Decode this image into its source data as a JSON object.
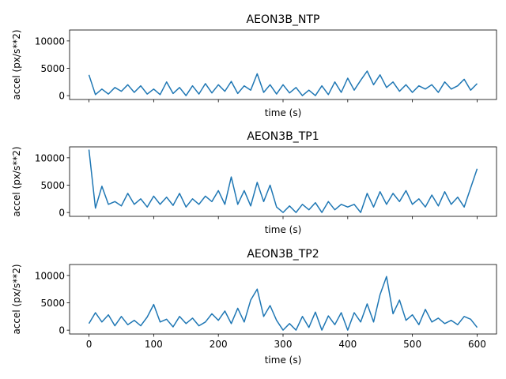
{
  "chart_data": [
    {
      "type": "line",
      "title": "AEON3B_NTP",
      "xlabel": "time (s)",
      "ylabel": "accel (px/s**2)",
      "xlim": [
        -30,
        630
      ],
      "ylim": [
        -700,
        12000
      ],
      "xticks": [
        0,
        100,
        200,
        300,
        400,
        500,
        600
      ],
      "yticks": [
        0,
        5000,
        10000
      ],
      "show_xticklabels": false,
      "grid": false,
      "color": "#1f77b4",
      "x_start": 0,
      "x_end": 600,
      "values": [
        3800,
        200,
        1200,
        300,
        1500,
        800,
        2000,
        600,
        1800,
        300,
        1200,
        200,
        2500,
        400,
        1500,
        0,
        1800,
        300,
        2200,
        500,
        2000,
        800,
        2600,
        400,
        1800,
        1000,
        4000,
        600,
        2000,
        300,
        2000,
        500,
        1500,
        0,
        1000,
        0,
        1800,
        200,
        2500,
        600,
        3200,
        1000,
        2800,
        4500,
        2000,
        3800,
        1500,
        2500,
        800,
        2000,
        600,
        1800,
        1200,
        2000,
        600,
        2500,
        1200,
        1800,
        3000,
        1000,
        2200
      ]
    },
    {
      "type": "line",
      "title": "AEON3B_TP1",
      "xlabel": "time (s)",
      "ylabel": "accel (px/s**2)",
      "xlim": [
        -30,
        630
      ],
      "ylim": [
        -700,
        12000
      ],
      "xticks": [
        0,
        100,
        200,
        300,
        400,
        500,
        600
      ],
      "yticks": [
        0,
        5000,
        10000
      ],
      "show_xticklabels": false,
      "grid": false,
      "color": "#1f77b4",
      "x_start": 0,
      "x_end": 600,
      "values": [
        11500,
        800,
        4800,
        1500,
        2000,
        1200,
        3500,
        1500,
        2500,
        1000,
        3000,
        1500,
        2800,
        1300,
        3500,
        1000,
        2500,
        1500,
        3000,
        2000,
        4000,
        1500,
        6500,
        1500,
        4000,
        1200,
        5500,
        2000,
        5000,
        1000,
        0,
        1200,
        0,
        1500,
        500,
        1800,
        0,
        2000,
        500,
        1500,
        1000,
        1500,
        0,
        3500,
        1000,
        3800,
        1500,
        3500,
        2000,
        4000,
        1500,
        2500,
        1000,
        3200,
        1200,
        3800,
        1500,
        2800,
        1000,
        4500,
        8000
      ]
    },
    {
      "type": "line",
      "title": "AEON3B_TP2",
      "xlabel": "time (s)",
      "ylabel": "accel (px/s**2)",
      "xlim": [
        -30,
        630
      ],
      "ylim": [
        -700,
        12000
      ],
      "xticks": [
        0,
        100,
        200,
        300,
        400,
        500,
        600
      ],
      "yticks": [
        0,
        5000,
        10000
      ],
      "show_xticklabels": true,
      "grid": false,
      "color": "#1f77b4",
      "x_start": 0,
      "x_end": 600,
      "values": [
        1200,
        3200,
        1500,
        2800,
        800,
        2500,
        1000,
        1800,
        800,
        2400,
        4700,
        1500,
        2000,
        600,
        2500,
        1200,
        2200,
        800,
        1500,
        3000,
        1800,
        3500,
        1200,
        4000,
        1500,
        5500,
        7500,
        2500,
        4500,
        1800,
        0,
        1200,
        0,
        2500,
        500,
        3300,
        0,
        2600,
        1000,
        3200,
        0,
        3200,
        1500,
        4800,
        1500,
        6500,
        9800,
        3000,
        5500,
        1800,
        2800,
        1000,
        3800,
        1500,
        2200,
        1200,
        1800,
        1000,
        2500,
        2000,
        500
      ]
    }
  ]
}
